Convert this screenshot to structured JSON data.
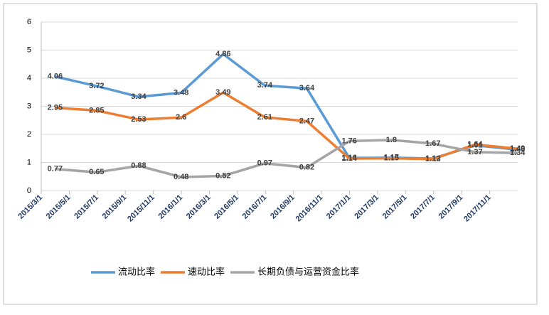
{
  "chart_data": {
    "type": "line",
    "x": [
      "2015/3/31",
      "2015/6/30",
      "2015/9/30",
      "2015/12/31",
      "2016/3/31",
      "2016/6/30",
      "2016/9/30",
      "2016/12/31",
      "2017/3/31",
      "2017/6/30",
      "2017/9/30",
      "2017/12/31"
    ],
    "xlim": [
      "2015/3/1",
      "2018/1/1"
    ],
    "xticks": [
      "2015/3/1",
      "2015/5/1",
      "2015/7/1",
      "2015/9/1",
      "2015/11/1",
      "2016/1/1",
      "2016/3/1",
      "2016/5/1",
      "2016/7/1",
      "2016/9/1",
      "2016/11/1",
      "2017/1/1",
      "2017/3/1",
      "2017/5/1",
      "2017/7/1",
      "2017/9/1",
      "2017/11/1"
    ],
    "ylim": [
      0,
      6
    ],
    "yticks": [
      0,
      1,
      2,
      3,
      4,
      5,
      6
    ],
    "grid": true,
    "legend": "bottom",
    "series": [
      {
        "name": "流动比率",
        "color": "#5b9bd5",
        "values": [
          4.06,
          3.72,
          3.34,
          3.48,
          4.86,
          3.74,
          3.64,
          1.16,
          1.17,
          1.14,
          1.61,
          1.46
        ]
      },
      {
        "name": "速动比率",
        "color": "#ed7d31",
        "values": [
          2.95,
          2.85,
          2.53,
          2.6,
          3.49,
          2.61,
          2.47,
          1.14,
          1.15,
          1.12,
          1.64,
          1.49
        ]
      },
      {
        "name": "长期负债与运营资金比率",
        "color": "#a5a5a5",
        "values": [
          0.77,
          0.65,
          0.88,
          0.48,
          0.52,
          0.97,
          0.82,
          1.76,
          1.8,
          1.67,
          1.37,
          1.34
        ]
      }
    ]
  }
}
